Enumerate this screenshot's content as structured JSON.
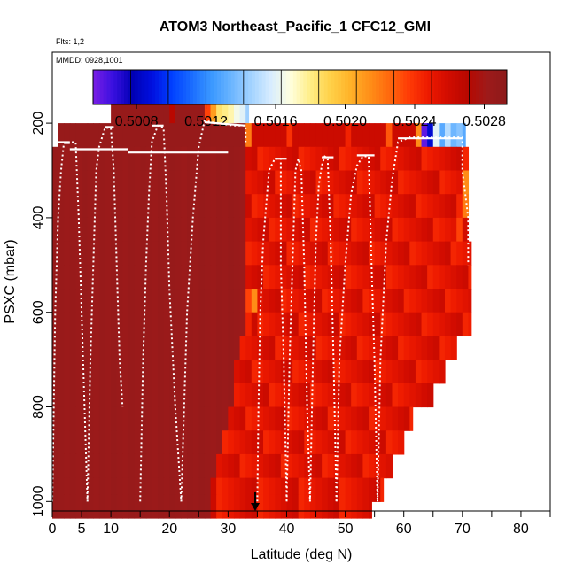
{
  "chart_data": {
    "type": "heatmap",
    "title": "ATOM3 Northeast_Pacific_1 CFC12_GMI",
    "annotations": [
      "Flts: 1,2",
      "MMDD: 0928,1001"
    ],
    "xlabel": "Latitude (deg N)",
    "ylabel": "PSXC (mbar)",
    "xlim": [
      0,
      85
    ],
    "ylim": [
      1020,
      50
    ],
    "x_ticks": [
      0,
      5,
      10,
      20,
      30,
      40,
      50,
      60,
      70,
      80
    ],
    "x_minor_ticks": [
      15,
      25,
      35,
      45,
      55,
      65,
      75,
      85
    ],
    "y_ticks": [
      200,
      400,
      600,
      800,
      1000
    ],
    "colorbar": {
      "min": 0.50055,
      "max": 0.50293,
      "tick_values": [
        0.5008,
        0.5012,
        0.5016,
        0.502,
        0.5024,
        0.5028
      ],
      "tick_labels": [
        "0.5008",
        "0.5012",
        "0.5016",
        "0.5020",
        "0.5024",
        "0.5028"
      ],
      "colors": [
        "#7a1ee6",
        "#3a10e0",
        "#0000b4",
        "#0010e0",
        "#0040ff",
        "#1a6cff",
        "#3a98ff",
        "#6ab4ff",
        "#a2d2ff",
        "#d6ecff",
        "#ffffe0",
        "#ffee88",
        "#ffd24a",
        "#ffb42a",
        "#ff9018",
        "#ff6a0e",
        "#ff3c06",
        "#ee1a00",
        "#d20c00",
        "#b80800",
        "#9e1a1a",
        "#8c1a1a"
      ]
    },
    "cells": [
      {
        "lat": 20,
        "p": 175,
        "v": 0.5027
      },
      {
        "lat": 26,
        "p": 175,
        "v": 0.50235
      },
      {
        "lat": 27,
        "p": 175,
        "v": 0.5021
      },
      {
        "lat": 28,
        "p": 175,
        "v": 0.50185
      },
      {
        "lat": 29,
        "p": 175,
        "v": 0.5018
      },
      {
        "lat": 30,
        "p": 175,
        "v": 0.50175
      },
      {
        "lat": 31,
        "p": 175,
        "v": 0.50165
      },
      {
        "lat": 32,
        "p": 175,
        "v": 0.5016
      },
      {
        "lat": 33,
        "p": 175,
        "v": 0.50145
      },
      {
        "lat": 33,
        "p": 225,
        "v": 0.5022
      },
      {
        "lat": 40,
        "p": 225,
        "v": 0.5024
      },
      {
        "lat": 50,
        "p": 225,
        "v": 0.50245
      },
      {
        "lat": 57,
        "p": 225,
        "v": 0.5023
      },
      {
        "lat": 62,
        "p": 225,
        "v": 0.50215
      },
      {
        "lat": 63,
        "p": 225,
        "v": 0.5006
      },
      {
        "lat": 64,
        "p": 225,
        "v": 0.50085
      },
      {
        "lat": 65,
        "p": 225,
        "v": 0.5016
      },
      {
        "lat": 66,
        "p": 225,
        "v": 0.5013
      },
      {
        "lat": 67,
        "p": 225,
        "v": 0.5015
      },
      {
        "lat": 68,
        "p": 225,
        "v": 0.50135
      },
      {
        "lat": 69,
        "p": 225,
        "v": 0.5014
      },
      {
        "lat": 70,
        "p": 225,
        "v": 0.5013
      },
      {
        "lat": 70,
        "p": 325,
        "v": 0.50215
      },
      {
        "lat": 70,
        "p": 375,
        "v": 0.5022
      },
      {
        "lat": 69,
        "p": 425,
        "v": 0.50235
      },
      {
        "lat": 33,
        "p": 575,
        "v": 0.50235
      },
      {
        "lat": 34,
        "p": 575,
        "v": 0.50215
      },
      {
        "lat": 33,
        "p": 625,
        "v": 0.50245
      }
    ]
  }
}
